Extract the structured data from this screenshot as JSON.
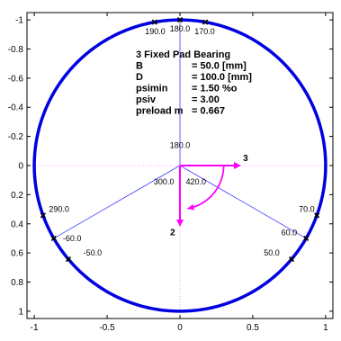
{
  "chart_data": {
    "type": "scatter",
    "xlim": [
      -1.05,
      1.05
    ],
    "ylim": [
      -1.05,
      1.05
    ],
    "y_inverted": true,
    "x_ticks": [
      {
        "value": -1,
        "label": "-1"
      },
      {
        "value": -0.5,
        "label": "-0.5"
      },
      {
        "value": 0,
        "label": "0"
      },
      {
        "value": 0.5,
        "label": "0.5"
      },
      {
        "value": 1,
        "label": "1"
      }
    ],
    "y_ticks": [
      {
        "value": -1,
        "label": "-1"
      },
      {
        "value": -0.8,
        "label": "-0.8"
      },
      {
        "value": -0.6,
        "label": "-0.6"
      },
      {
        "value": -0.4,
        "label": "-0.4"
      },
      {
        "value": -0.2,
        "label": "-0.2"
      },
      {
        "value": 0,
        "label": "0"
      },
      {
        "value": 0.2,
        "label": "0.2"
      },
      {
        "value": 0.4,
        "label": "0.4"
      },
      {
        "value": 0.6,
        "label": "0.6"
      },
      {
        "value": 0.8,
        "label": "0.8"
      },
      {
        "value": 1,
        "label": "1"
      }
    ],
    "bearing_circle": {
      "radius": 1.0,
      "color": "#10d010"
    },
    "pads": [
      {
        "start_deg": 170,
        "end_deg": 290,
        "color": "#0000e0"
      },
      {
        "start_deg": 290,
        "end_deg": 410,
        "color": "#0000e0"
      },
      {
        "start_deg": 50,
        "end_deg": 170,
        "color": "#0000e0"
      }
    ],
    "pad_lines": [
      {
        "angle_deg": 180,
        "label": "180.0",
        "label_x": 0.0,
        "label_y": -0.14
      },
      {
        "angle_deg": 300,
        "label": "300.0",
        "label_x": -0.11,
        "label_y": 0.11
      },
      {
        "angle_deg": 420,
        "label": "420.0",
        "label_x": 0.11,
        "label_y": 0.11
      }
    ],
    "markers": [
      {
        "angle_deg": 190,
        "label": "190.0",
        "label_x": -0.17,
        "label_y": -0.92
      },
      {
        "angle_deg": 180,
        "label": "180.0",
        "label_x": 0.0,
        "label_y": -0.94
      },
      {
        "angle_deg": 170,
        "label": "170.0",
        "label_x": 0.17,
        "label_y": -0.92
      },
      {
        "angle_deg": 290,
        "label": "290.0",
        "label_x": -0.83,
        "label_y": 0.3
      },
      {
        "angle_deg": -60,
        "label": "-60.0",
        "label_x": -0.74,
        "label_y": 0.5
      },
      {
        "angle_deg": -50,
        "label": "-50.0",
        "label_x": -0.6,
        "label_y": 0.6
      },
      {
        "angle_deg": 70,
        "label": "70.0",
        "label_x": 0.87,
        "label_y": 0.3
      },
      {
        "angle_deg": 60,
        "label": "60.0",
        "label_x": 0.75,
        "label_y": 0.46
      },
      {
        "angle_deg": 50,
        "label": "50.0",
        "label_x": 0.63,
        "label_y": 0.6
      }
    ],
    "vectors": [
      {
        "from": [
          0,
          0
        ],
        "to": [
          0.42,
          0
        ],
        "label": "3",
        "label_x": 0.45,
        "label_y": -0.05,
        "color": "#ff00ff"
      },
      {
        "from": [
          0,
          0
        ],
        "to": [
          0,
          0.42
        ],
        "label": "2",
        "label_x": -0.05,
        "label_y": 0.46,
        "color": "#ff00ff"
      }
    ],
    "rotation_arrow": {
      "center": [
        0,
        0
      ],
      "radius": 0.3,
      "start_deg": 90,
      "end_deg": 10,
      "color": "#ff00ff"
    },
    "info_box": {
      "lines": [
        {
          "key": "3 Fixed Pad Bearing",
          "value": ""
        },
        {
          "key": "B",
          "value": "= 50.0 [mm]"
        },
        {
          "key": "D",
          "value": "= 100.0 [mm]"
        },
        {
          "key": "psimin",
          "value": "= 1.50 %o"
        },
        {
          "key": "psiv",
          "value": "= 3.00"
        },
        {
          "key": "preload m",
          "value": "= 0.667"
        }
      ]
    },
    "colors": {
      "pad": "#0000e0",
      "circle": "#10d010",
      "guide": "#4040ff",
      "vector": "#ff00ff",
      "axis_line": "#ff9cff"
    }
  }
}
